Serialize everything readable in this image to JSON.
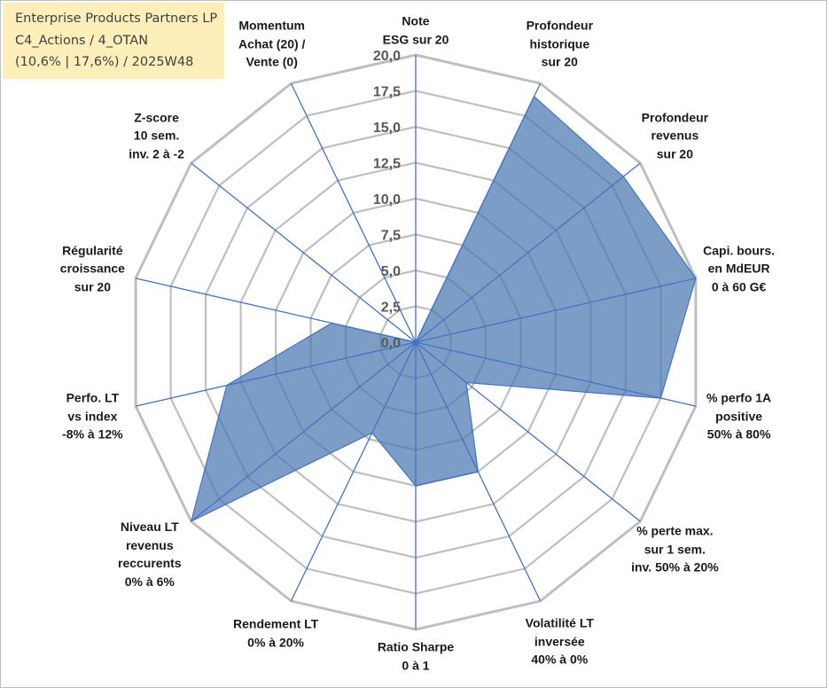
{
  "header": {
    "line1": "Enterprise Products Partners LP",
    "line2": "C4_Actions / 4_OTAN",
    "line3": "(10,6% | 17,6%) / 2025W48"
  },
  "chart_data": {
    "type": "radar",
    "title": "Enterprise Products Partners LP",
    "rlim": [
      0,
      20
    ],
    "ticks": [
      "0,0",
      "2,5",
      "5,0",
      "7,5",
      "10,0",
      "12,5",
      "15,0",
      "17,5",
      "20,0"
    ],
    "axes": [
      {
        "label": [
          "Note",
          "ESG sur 20"
        ],
        "value": 0
      },
      {
        "label": [
          "Profondeur",
          "historique",
          "sur 20"
        ],
        "value": 19
      },
      {
        "label": [
          "Profondeur",
          "revenus",
          "sur 20"
        ],
        "value": 18.5
      },
      {
        "label": [
          "Capi. bours.",
          "en MdEUR",
          "0 à 60 G€"
        ],
        "value": 20
      },
      {
        "label": [
          "% perfo 1A",
          "positive",
          "50% à 80%"
        ],
        "value": 17.5
      },
      {
        "label": [
          "% perte max.",
          "sur 1 sem.",
          "inv. 50% à 20%"
        ],
        "value": 4.5
      },
      {
        "label": [
          "Volatilité LT",
          "inversée",
          "40% à 0%"
        ],
        "value": 10
      },
      {
        "label": [
          "Ratio Sharpe",
          "0 à 1"
        ],
        "value": 10
      },
      {
        "label": [
          "Rendement LT",
          "0% à 20%"
        ],
        "value": 7
      },
      {
        "label": [
          "Niveau LT",
          "revenus",
          "reccurents",
          "0% à 6%"
        ],
        "value": 20
      },
      {
        "label": [
          "Perfo. LT",
          "vs index",
          "-8% à 12%"
        ],
        "value": 13.5
      },
      {
        "label": [
          "Régularité",
          "croissance",
          "sur 20"
        ],
        "value": 6
      },
      {
        "label": [
          "Z-score",
          "10 sem.",
          "inv. 2 à -2"
        ],
        "value": 0
      },
      {
        "label": [
          "Momentum",
          "Achat (20) /",
          "Vente (0)"
        ],
        "value": 0
      }
    ],
    "series": [
      {
        "name": "Enterprise Products Partners LP"
      }
    ],
    "colors": {
      "grid": "#bfbfbf",
      "axis": "#4472c4",
      "fill": "#4a78b0",
      "fill_opacity": 0.72,
      "tick_text": "#595959"
    }
  }
}
